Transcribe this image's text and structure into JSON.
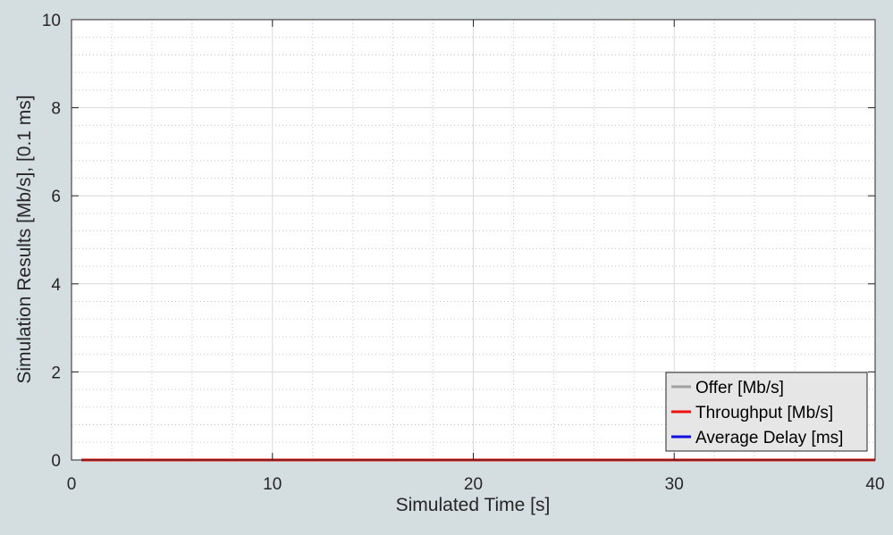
{
  "chart_data": {
    "type": "line",
    "title": "",
    "xlabel": "Simulated Time [s]",
    "ylabel": "Simulation Results [Mb/s], [0.1 ms]",
    "xlim": [
      0,
      40
    ],
    "ylim": [
      0,
      10
    ],
    "xticks": [
      0,
      10,
      20,
      30,
      40
    ],
    "yticks": [
      0,
      2,
      4,
      6,
      8,
      10
    ],
    "grid": true,
    "minor_grid": true,
    "legend_position": "bottom-right",
    "series": [
      {
        "name": "Offer [Mb/s]",
        "color": "#a0a0a0",
        "x": [
          0.5,
          40
        ],
        "y": [
          0,
          0
        ]
      },
      {
        "name": "Average Delay [ms]",
        "color": "#1010e0",
        "x": [
          0.5,
          40
        ],
        "y": [
          0,
          0
        ]
      },
      {
        "name": "Throughput [Mb/s]",
        "color": "#ee1111",
        "x": [
          0.5,
          40
        ],
        "y": [
          0,
          0
        ]
      }
    ],
    "legend_order": [
      "Offer [Mb/s]",
      "Throughput [Mb/s]",
      "Average Delay [ms]"
    ]
  }
}
